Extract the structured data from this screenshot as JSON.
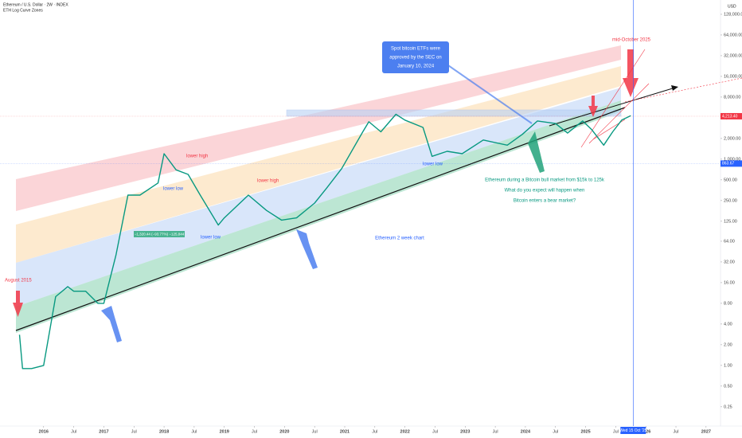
{
  "chart_data": {
    "type": "line",
    "title": "Ethereum / U.S. Dollar · 2W · INDEX",
    "subtitle": "ETH Log Curve Zones",
    "currency": "USD",
    "x": [
      2015.6,
      2015.65,
      2015.8,
      2016.0,
      2016.2,
      2016.4,
      2016.5,
      2016.7,
      2016.9,
      2017.0,
      2017.2,
      2017.4,
      2017.6,
      2017.9,
      2018.0,
      2018.2,
      2018.4,
      2018.6,
      2018.9,
      2019.0,
      2019.4,
      2019.7,
      2019.95,
      2020.2,
      2020.5,
      2020.7,
      2020.95,
      2021.3,
      2021.4,
      2021.6,
      2021.85,
      2022.0,
      2022.3,
      2022.45,
      2022.7,
      2022.95,
      2023.3,
      2023.7,
      2023.95,
      2024.2,
      2024.5,
      2024.7,
      2024.95,
      2025.1,
      2025.3,
      2025.45,
      2025.6,
      2025.75
    ],
    "values": [
      2.8,
      0.9,
      0.9,
      1,
      10,
      14,
      12,
      12,
      8,
      8,
      40,
      300,
      300,
      450,
      1200,
      700,
      600,
      300,
      110,
      140,
      300,
      180,
      130,
      140,
      230,
      380,
      730,
      2500,
      3500,
      2500,
      4500,
      3700,
      2900,
      1100,
      1300,
      1200,
      1900,
      1600,
      2300,
      3600,
      3300,
      2400,
      3600,
      2700,
      1600,
      2500,
      3700,
      4300
    ],
    "color": "#089981",
    "log_scale": true,
    "xlim": [
      2015.54,
      2027.24
    ],
    "xticks": [
      2016,
      {
        "value": 2016.5,
        "label": "Jul"
      },
      2017,
      {
        "value": 2017.5,
        "label": "Jul"
      },
      2018,
      {
        "value": 2018.5,
        "label": "Jul"
      },
      2019,
      {
        "value": 2019.5,
        "label": "Jul"
      },
      2020,
      {
        "value": 2020.5,
        "label": "Jul"
      },
      2021,
      {
        "value": 2021.5,
        "label": "Jul"
      },
      2022,
      {
        "value": 2022.5,
        "label": "Jul"
      },
      2023,
      {
        "value": 2023.5,
        "label": "Jul"
      },
      2024,
      {
        "value": 2024.5,
        "label": "Jul"
      },
      2025,
      {
        "value": 2025.5,
        "label": "Jul"
      },
      2026,
      {
        "value": 2026.5,
        "label": "Jul"
      },
      2027
    ],
    "ylim": [
      0.15,
      167000
    ],
    "yticks": [
      {
        "value": 128000,
        "label": "128,000.00"
      },
      {
        "value": 64000,
        "label": "64,000.00"
      },
      {
        "value": 32000,
        "label": "32,000.00"
      },
      {
        "value": 16000,
        "label": "16,000.00"
      },
      {
        "value": 8000,
        "label": "8,000.00"
      },
      {
        "value": 4000,
        "label": "4,000.00"
      },
      {
        "value": 2000,
        "label": "2,000.00"
      },
      {
        "value": 1000,
        "label": "1,000.00"
      },
      {
        "value": 500,
        "label": "500.00"
      },
      {
        "value": 250,
        "label": "250.00"
      },
      {
        "value": 125,
        "label": "125.00"
      },
      {
        "value": 64,
        "label": "64.00"
      },
      {
        "value": 32,
        "label": "32.00"
      },
      {
        "value": 16,
        "label": "16.00"
      },
      {
        "value": 8,
        "label": "8.00"
      },
      {
        "value": 4,
        "label": "4.00"
      },
      {
        "value": 2,
        "label": "2.00"
      },
      {
        "value": 1,
        "label": "1.00"
      },
      {
        "value": 0.5,
        "label": "0.50"
      },
      {
        "value": 0.25,
        "label": "0.25"
      }
    ],
    "price_labels": [
      {
        "value": 4213.4,
        "label": "4,213.40",
        "color": "#f23645"
      },
      {
        "value": 863.67,
        "label": "863.67",
        "color": "#2962ff"
      }
    ],
    "cursor": {
      "x": 2025.79,
      "label": "Wed 15 Oct '25"
    },
    "measure": "−1,320.44 (−93.77%) −125,844",
    "etf_note": [
      "Spot bitcoin ETFs were",
      "approved by the SEC on",
      "January 10, 2024"
    ],
    "annotations": [
      "mid-October 2025",
      "August 2015",
      "lower high",
      "lower low",
      "lower low",
      "lower high",
      "lower low",
      "Ethereum 2 week chart",
      "Ethereum during a Bitcoin bull market from $15k to 125k",
      "What do you expect will happen when",
      "Bitcoin enters a bear market?"
    ]
  }
}
